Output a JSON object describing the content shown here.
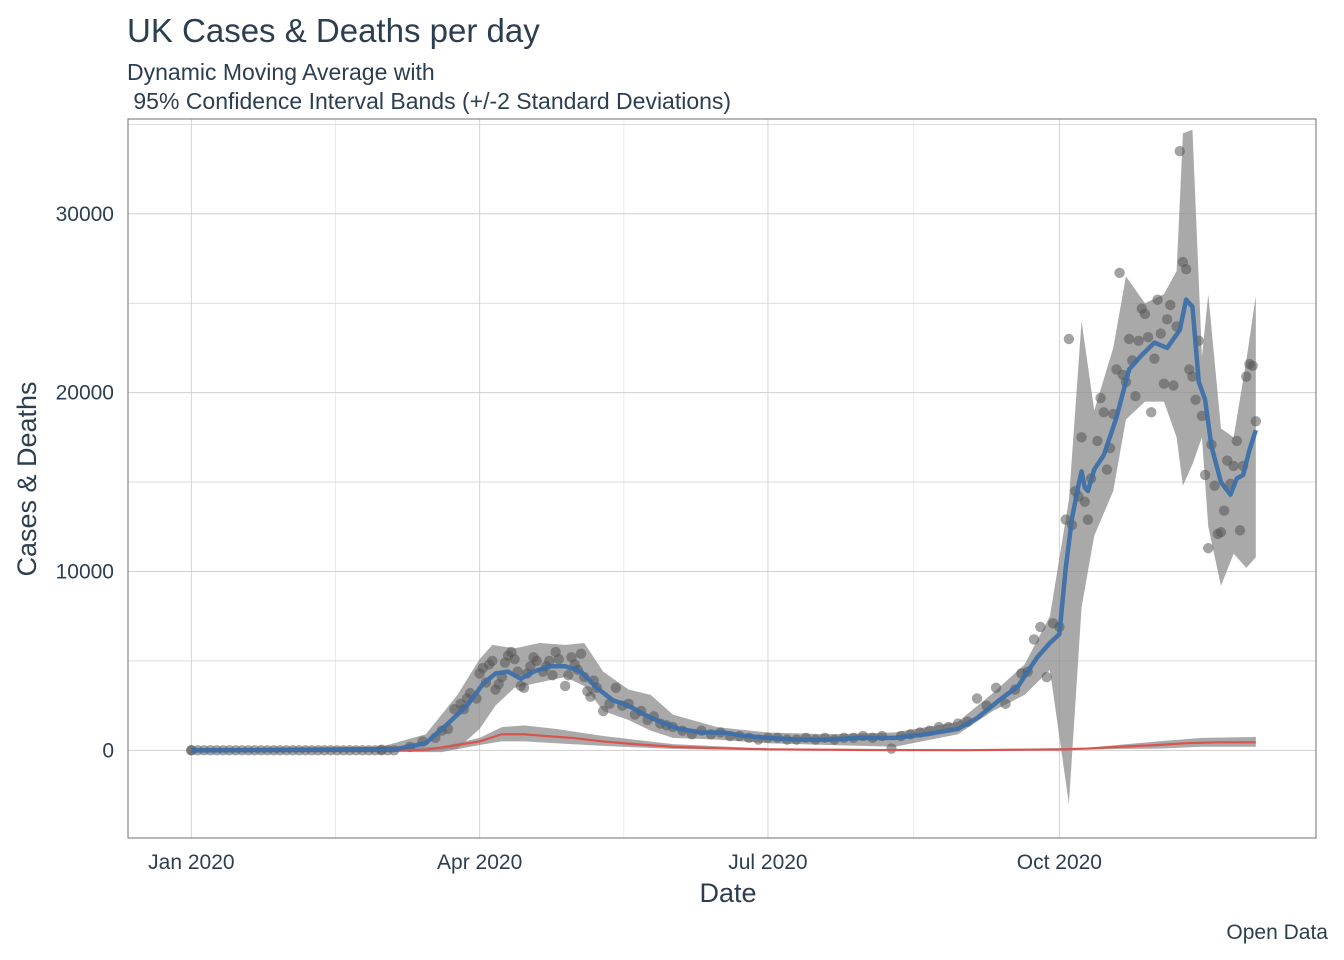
{
  "chart_data": {
    "type": "scatter",
    "title": "UK Cases & Deaths per day",
    "subtitle": "Dynamic Moving Average with\n 95% Confidence Interval Bands (+/-2 Standard Deviations)",
    "xlabel": "Date",
    "ylabel": "Cases & Deaths",
    "caption": "Open Data",
    "x_ticks": [
      "Jan 2020",
      "Apr 2020",
      "Jul 2020",
      "Oct 2020"
    ],
    "y_ticks": [
      0,
      10000,
      20000,
      30000
    ],
    "x_range": [
      "2019-12-12",
      "2020-12-21"
    ],
    "ylim": [
      -4900,
      35300
    ],
    "grid": true,
    "colors": {
      "cases": "#3b6fa8",
      "deaths": "#d9534f",
      "points": "#555555",
      "band": "#8c8c8c"
    },
    "cases_points": [
      [
        "2020-01-01",
        0
      ],
      [
        "2020-03-01",
        40
      ],
      [
        "2020-03-10",
        200
      ],
      [
        "2020-03-14",
        500
      ],
      [
        "2020-03-18",
        700
      ],
      [
        "2020-03-20",
        1100
      ],
      [
        "2020-03-22",
        1200
      ],
      [
        "2020-03-24",
        2300
      ],
      [
        "2020-03-26",
        2600
      ],
      [
        "2020-03-27",
        2300
      ],
      [
        "2020-03-28",
        2900
      ],
      [
        "2020-03-29",
        3200
      ],
      [
        "2020-03-31",
        2900
      ],
      [
        "2020-04-01",
        4300
      ],
      [
        "2020-04-02",
        4600
      ],
      [
        "2020-04-03",
        3800
      ],
      [
        "2020-04-04",
        4800
      ],
      [
        "2020-04-05",
        5000
      ],
      [
        "2020-04-06",
        3400
      ],
      [
        "2020-04-07",
        3700
      ],
      [
        "2020-04-08",
        4100
      ],
      [
        "2020-04-09",
        4900
      ],
      [
        "2020-04-10",
        5300
      ],
      [
        "2020-04-11",
        5500
      ],
      [
        "2020-04-12",
        5100
      ],
      [
        "2020-04-13",
        4400
      ],
      [
        "2020-04-14",
        3600
      ],
      [
        "2020-04-15",
        3500
      ],
      [
        "2020-04-16",
        4300
      ],
      [
        "2020-04-17",
        4700
      ],
      [
        "2020-04-18",
        5200
      ],
      [
        "2020-04-19",
        5000
      ],
      [
        "2020-04-21",
        4400
      ],
      [
        "2020-04-22",
        4700
      ],
      [
        "2020-04-23",
        5000
      ],
      [
        "2020-04-24",
        4200
      ],
      [
        "2020-04-25",
        5500
      ],
      [
        "2020-04-26",
        5100
      ],
      [
        "2020-04-28",
        3600
      ],
      [
        "2020-04-29",
        4200
      ],
      [
        "2020-04-30",
        5200
      ],
      [
        "2020-05-01",
        4800
      ],
      [
        "2020-05-02",
        4500
      ],
      [
        "2020-05-03",
        5400
      ],
      [
        "2020-05-04",
        4100
      ],
      [
        "2020-05-05",
        3300
      ],
      [
        "2020-05-06",
        3000
      ],
      [
        "2020-05-07",
        3900
      ],
      [
        "2020-05-08",
        3500
      ],
      [
        "2020-05-10",
        2200
      ],
      [
        "2020-05-12",
        2600
      ],
      [
        "2020-05-14",
        3500
      ],
      [
        "2020-05-16",
        2500
      ],
      [
        "2020-05-18",
        2600
      ],
      [
        "2020-05-20",
        2000
      ],
      [
        "2020-05-22",
        2200
      ],
      [
        "2020-05-24",
        1700
      ],
      [
        "2020-05-26",
        1900
      ],
      [
        "2020-05-28",
        1500
      ],
      [
        "2020-05-30",
        1400
      ],
      [
        "2020-06-01",
        1300
      ],
      [
        "2020-06-04",
        1100
      ],
      [
        "2020-06-07",
        900
      ],
      [
        "2020-06-10",
        1100
      ],
      [
        "2020-06-13",
        900
      ],
      [
        "2020-06-16",
        1000
      ],
      [
        "2020-06-19",
        800
      ],
      [
        "2020-06-22",
        800
      ],
      [
        "2020-06-25",
        700
      ],
      [
        "2020-06-28",
        600
      ],
      [
        "2020-07-01",
        700
      ],
      [
        "2020-07-04",
        700
      ],
      [
        "2020-07-07",
        600
      ],
      [
        "2020-07-10",
        600
      ],
      [
        "2020-07-13",
        700
      ],
      [
        "2020-07-16",
        600
      ],
      [
        "2020-07-19",
        700
      ],
      [
        "2020-07-22",
        600
      ],
      [
        "2020-07-25",
        700
      ],
      [
        "2020-07-28",
        700
      ],
      [
        "2020-07-31",
        800
      ],
      [
        "2020-08-03",
        700
      ],
      [
        "2020-08-06",
        800
      ],
      [
        "2020-08-09",
        100
      ],
      [
        "2020-08-12",
        800
      ],
      [
        "2020-08-15",
        900
      ],
      [
        "2020-08-18",
        1000
      ],
      [
        "2020-08-21",
        1100
      ],
      [
        "2020-08-24",
        1300
      ],
      [
        "2020-08-27",
        1300
      ],
      [
        "2020-08-30",
        1500
      ],
      [
        "2020-09-02",
        1600
      ],
      [
        "2020-09-05",
        2900
      ],
      [
        "2020-09-08",
        2500
      ],
      [
        "2020-09-11",
        3500
      ],
      [
        "2020-09-14",
        2600
      ],
      [
        "2020-09-17",
        3400
      ],
      [
        "2020-09-19",
        4300
      ],
      [
        "2020-09-21",
        4400
      ],
      [
        "2020-09-23",
        6200
      ],
      [
        "2020-09-25",
        6900
      ],
      [
        "2020-09-27",
        4100
      ],
      [
        "2020-09-29",
        7100
      ],
      [
        "2020-10-01",
        6900
      ],
      [
        "2020-10-03",
        12900
      ],
      [
        "2020-10-04",
        23000
      ],
      [
        "2020-10-05",
        12600
      ],
      [
        "2020-10-06",
        14500
      ],
      [
        "2020-10-07",
        14200
      ],
      [
        "2020-10-08",
        17500
      ],
      [
        "2020-10-09",
        13900
      ],
      [
        "2020-10-10",
        12900
      ],
      [
        "2020-10-11",
        15200
      ],
      [
        "2020-10-13",
        17300
      ],
      [
        "2020-10-14",
        19700
      ],
      [
        "2020-10-15",
        18900
      ],
      [
        "2020-10-16",
        15700
      ],
      [
        "2020-10-17",
        16900
      ],
      [
        "2020-10-18",
        18800
      ],
      [
        "2020-10-19",
        21300
      ],
      [
        "2020-10-20",
        26700
      ],
      [
        "2020-10-21",
        21000
      ],
      [
        "2020-10-22",
        20600
      ],
      [
        "2020-10-23",
        23000
      ],
      [
        "2020-10-24",
        21800
      ],
      [
        "2020-10-25",
        19800
      ],
      [
        "2020-10-26",
        22900
      ],
      [
        "2020-10-27",
        24700
      ],
      [
        "2020-10-28",
        24400
      ],
      [
        "2020-10-29",
        23100
      ],
      [
        "2020-10-30",
        18900
      ],
      [
        "2020-10-31",
        21900
      ],
      [
        "2020-11-01",
        25200
      ],
      [
        "2020-11-02",
        23300
      ],
      [
        "2020-11-03",
        20500
      ],
      [
        "2020-11-04",
        24100
      ],
      [
        "2020-11-05",
        24900
      ],
      [
        "2020-11-06",
        20400
      ],
      [
        "2020-11-07",
        23700
      ],
      [
        "2020-11-08",
        33500
      ],
      [
        "2020-11-09",
        27300
      ],
      [
        "2020-11-10",
        26900
      ],
      [
        "2020-11-11",
        21300
      ],
      [
        "2020-11-12",
        20900
      ],
      [
        "2020-11-13",
        19600
      ],
      [
        "2020-11-14",
        22900
      ],
      [
        "2020-11-15",
        18700
      ],
      [
        "2020-11-16",
        15400
      ],
      [
        "2020-11-17",
        11300
      ],
      [
        "2020-11-18",
        17100
      ],
      [
        "2020-11-19",
        14800
      ],
      [
        "2020-11-20",
        12100
      ],
      [
        "2020-11-21",
        12200
      ],
      [
        "2020-11-22",
        13400
      ],
      [
        "2020-11-23",
        16200
      ],
      [
        "2020-11-24",
        14900
      ],
      [
        "2020-11-25",
        15900
      ],
      [
        "2020-11-26",
        17300
      ],
      [
        "2020-11-27",
        12300
      ],
      [
        "2020-11-28",
        15900
      ],
      [
        "2020-11-29",
        20900
      ],
      [
        "2020-11-30",
        21600
      ],
      [
        "2020-12-01",
        21500
      ],
      [
        "2020-12-02",
        18400
      ]
    ],
    "cases_avg": [
      [
        "2020-01-01",
        0
      ],
      [
        "2020-03-05",
        50
      ],
      [
        "2020-03-15",
        400
      ],
      [
        "2020-03-22",
        1500
      ],
      [
        "2020-03-28",
        2500
      ],
      [
        "2020-04-02",
        3700
      ],
      [
        "2020-04-06",
        4300
      ],
      [
        "2020-04-10",
        4400
      ],
      [
        "2020-04-14",
        4000
      ],
      [
        "2020-04-18",
        4400
      ],
      [
        "2020-04-23",
        4700
      ],
      [
        "2020-04-28",
        4700
      ],
      [
        "2020-05-03",
        4400
      ],
      [
        "2020-05-08",
        3500
      ],
      [
        "2020-05-13",
        2800
      ],
      [
        "2020-05-18",
        2500
      ],
      [
        "2020-05-23",
        2000
      ],
      [
        "2020-05-28",
        1600
      ],
      [
        "2020-06-03",
        1200
      ],
      [
        "2020-06-10",
        1000
      ],
      [
        "2020-06-17",
        1000
      ],
      [
        "2020-06-24",
        800
      ],
      [
        "2020-07-01",
        700
      ],
      [
        "2020-07-10",
        600
      ],
      [
        "2020-07-20",
        600
      ],
      [
        "2020-07-30",
        700
      ],
      [
        "2020-08-10",
        700
      ],
      [
        "2020-08-20",
        900
      ],
      [
        "2020-08-30",
        1200
      ],
      [
        "2020-09-05",
        1800
      ],
      [
        "2020-09-12",
        2800
      ],
      [
        "2020-09-18",
        3600
      ],
      [
        "2020-09-24",
        5200
      ],
      [
        "2020-09-28",
        6000
      ],
      [
        "2020-10-01",
        6500
      ],
      [
        "2020-10-03",
        10200
      ],
      [
        "2020-10-05",
        13000
      ],
      [
        "2020-10-07",
        14800
      ],
      [
        "2020-10-08",
        15600
      ],
      [
        "2020-10-09",
        14700
      ],
      [
        "2020-10-10",
        14500
      ],
      [
        "2020-10-12",
        15700
      ],
      [
        "2020-10-15",
        16500
      ],
      [
        "2020-10-19",
        18600
      ],
      [
        "2020-10-23",
        21300
      ],
      [
        "2020-10-27",
        22100
      ],
      [
        "2020-10-31",
        22800
      ],
      [
        "2020-11-04",
        22500
      ],
      [
        "2020-11-08",
        23500
      ],
      [
        "2020-11-10",
        25200
      ],
      [
        "2020-11-12",
        24800
      ],
      [
        "2020-11-14",
        20600
      ],
      [
        "2020-11-16",
        19600
      ],
      [
        "2020-11-18",
        17000
      ],
      [
        "2020-11-21",
        15000
      ],
      [
        "2020-11-24",
        14300
      ],
      [
        "2020-11-26",
        15200
      ],
      [
        "2020-11-28",
        15400
      ],
      [
        "2020-11-30",
        16800
      ],
      [
        "2020-12-02",
        17900
      ]
    ],
    "cases_band": {
      "upper": [
        [
          "2020-01-01",
          100
        ],
        [
          "2020-03-01",
          200
        ],
        [
          "2020-03-15",
          900
        ],
        [
          "2020-03-25",
          3100
        ],
        [
          "2020-04-01",
          5100
        ],
        [
          "2020-04-05",
          5900
        ],
        [
          "2020-04-12",
          5700
        ],
        [
          "2020-04-20",
          6000
        ],
        [
          "2020-04-28",
          5900
        ],
        [
          "2020-05-04",
          6000
        ],
        [
          "2020-05-10",
          4400
        ],
        [
          "2020-05-18",
          3400
        ],
        [
          "2020-05-25",
          3100
        ],
        [
          "2020-06-01",
          2000
        ],
        [
          "2020-06-15",
          1300
        ],
        [
          "2020-07-01",
          1000
        ],
        [
          "2020-07-20",
          900
        ],
        [
          "2020-08-10",
          1000
        ],
        [
          "2020-08-30",
          1600
        ],
        [
          "2020-09-10",
          3200
        ],
        [
          "2020-09-20",
          4800
        ],
        [
          "2020-09-28",
          7500
        ],
        [
          "2020-10-04",
          14000
        ],
        [
          "2020-10-08",
          24000
        ],
        [
          "2020-10-12",
          19000
        ],
        [
          "2020-10-18",
          22500
        ],
        [
          "2020-10-22",
          26500
        ],
        [
          "2020-10-28",
          25000
        ],
        [
          "2020-11-03",
          25500
        ],
        [
          "2020-11-07",
          26800
        ],
        [
          "2020-11-09",
          34500
        ],
        [
          "2020-11-12",
          34700
        ],
        [
          "2020-11-15",
          22000
        ],
        [
          "2020-11-17",
          25500
        ],
        [
          "2020-11-21",
          18000
        ],
        [
          "2020-11-25",
          17500
        ],
        [
          "2020-11-29",
          21800
        ],
        [
          "2020-12-02",
          25400
        ]
      ],
      "lower": [
        [
          "2020-01-01",
          -100
        ],
        [
          "2020-03-01",
          -100
        ],
        [
          "2020-03-15",
          -50
        ],
        [
          "2020-03-25",
          100
        ],
        [
          "2020-04-01",
          1200
        ],
        [
          "2020-04-06",
          2500
        ],
        [
          "2020-04-12",
          3500
        ],
        [
          "2020-04-20",
          3800
        ],
        [
          "2020-04-28",
          4100
        ],
        [
          "2020-05-04",
          3600
        ],
        [
          "2020-05-10",
          2200
        ],
        [
          "2020-05-18",
          1700
        ],
        [
          "2020-05-25",
          1100
        ],
        [
          "2020-06-01",
          700
        ],
        [
          "2020-06-15",
          600
        ],
        [
          "2020-07-01",
          400
        ],
        [
          "2020-07-20",
          300
        ],
        [
          "2020-08-10",
          200
        ],
        [
          "2020-08-30",
          900
        ],
        [
          "2020-09-10",
          2200
        ],
        [
          "2020-09-20",
          3100
        ],
        [
          "2020-09-28",
          4500
        ],
        [
          "2020-10-04",
          -3000
        ],
        [
          "2020-10-08",
          8000
        ],
        [
          "2020-10-12",
          12000
        ],
        [
          "2020-10-18",
          14500
        ],
        [
          "2020-10-22",
          18500
        ],
        [
          "2020-10-28",
          19500
        ],
        [
          "2020-11-03",
          19500
        ],
        [
          "2020-11-07",
          17500
        ],
        [
          "2020-11-09",
          14800
        ],
        [
          "2020-11-12",
          16000
        ],
        [
          "2020-11-15",
          17500
        ],
        [
          "2020-11-17",
          12500
        ],
        [
          "2020-11-21",
          9200
        ],
        [
          "2020-11-25",
          11000
        ],
        [
          "2020-11-29",
          10200
        ],
        [
          "2020-12-02",
          10800
        ]
      ]
    },
    "deaths_avg": [
      [
        "2020-01-01",
        0
      ],
      [
        "2020-03-15",
        30
      ],
      [
        "2020-03-25",
        300
      ],
      [
        "2020-04-01",
        500
      ],
      [
        "2020-04-08",
        900
      ],
      [
        "2020-04-15",
        900
      ],
      [
        "2020-04-22",
        800
      ],
      [
        "2020-04-30",
        700
      ],
      [
        "2020-05-10",
        500
      ],
      [
        "2020-05-20",
        350
      ],
      [
        "2020-06-01",
        200
      ],
      [
        "2020-06-15",
        120
      ],
      [
        "2020-07-01",
        60
      ],
      [
        "2020-08-01",
        20
      ],
      [
        "2020-09-01",
        10
      ],
      [
        "2020-10-01",
        50
      ],
      [
        "2020-10-10",
        100
      ],
      [
        "2020-10-20",
        200
      ],
      [
        "2020-11-01",
        300
      ],
      [
        "2020-11-10",
        400
      ],
      [
        "2020-11-20",
        450
      ],
      [
        "2020-12-02",
        450
      ]
    ],
    "deaths_band": {
      "upper": [
        [
          "2020-01-01",
          60
        ],
        [
          "2020-03-20",
          200
        ],
        [
          "2020-04-01",
          700
        ],
        [
          "2020-04-08",
          1300
        ],
        [
          "2020-04-15",
          1400
        ],
        [
          "2020-04-25",
          1200
        ],
        [
          "2020-05-10",
          800
        ],
        [
          "2020-06-01",
          350
        ],
        [
          "2020-07-01",
          100
        ],
        [
          "2020-09-01",
          50
        ],
        [
          "2020-10-10",
          150
        ],
        [
          "2020-11-01",
          500
        ],
        [
          "2020-11-15",
          700
        ],
        [
          "2020-12-02",
          750
        ]
      ],
      "lower": [
        [
          "2020-01-01",
          -60
        ],
        [
          "2020-03-20",
          -100
        ],
        [
          "2020-04-01",
          300
        ],
        [
          "2020-04-08",
          500
        ],
        [
          "2020-04-15",
          500
        ],
        [
          "2020-04-25",
          400
        ],
        [
          "2020-05-10",
          250
        ],
        [
          "2020-06-01",
          80
        ],
        [
          "2020-07-01",
          20
        ],
        [
          "2020-09-01",
          -20
        ],
        [
          "2020-10-10",
          60
        ],
        [
          "2020-11-01",
          100
        ],
        [
          "2020-11-15",
          200
        ],
        [
          "2020-12-02",
          200
        ]
      ]
    }
  }
}
